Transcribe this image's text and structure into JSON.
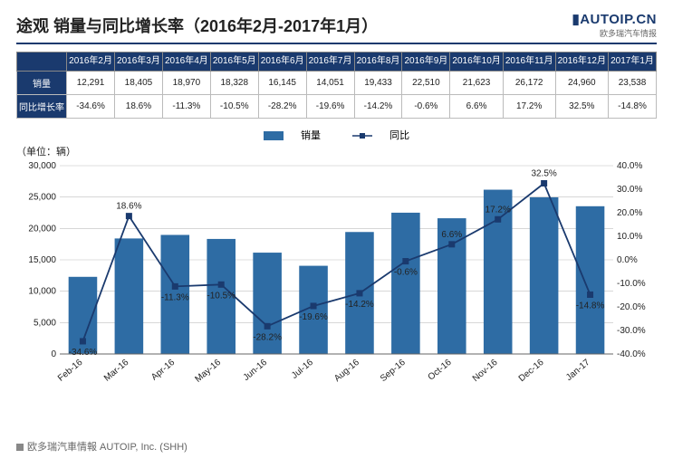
{
  "title": "途观 销量与同比增长率（2016年2月-2017年1月）",
  "logo": {
    "main": "▮AUTOIP.CN",
    "sub": "欧多瑞汽车情报"
  },
  "table": {
    "row_headers": [
      "销量",
      "同比增长率"
    ],
    "periods": [
      "2016年2月",
      "2016年3月",
      "2016年4月",
      "2016年5月",
      "2016年6月",
      "2016年7月",
      "2016年8月",
      "2016年9月",
      "2016年10月",
      "2016年11月",
      "2016年12月",
      "2017年1月"
    ],
    "sales": [
      "12,291",
      "18,405",
      "18,970",
      "18,328",
      "16,145",
      "14,051",
      "19,433",
      "22,510",
      "21,623",
      "26,172",
      "24,960",
      "23,538"
    ],
    "yoy": [
      "-34.6%",
      "18.6%",
      "-11.3%",
      "-10.5%",
      "-28.2%",
      "-19.6%",
      "-14.2%",
      "-0.6%",
      "6.6%",
      "17.2%",
      "32.5%",
      "-14.8%"
    ]
  },
  "chart": {
    "unit_label": "（单位：辆）",
    "legend": {
      "bar": "销量",
      "line": "同比"
    },
    "categories": [
      "Feb-16",
      "Mar-16",
      "Apr-16",
      "May-16",
      "Jun-16",
      "Jul-16",
      "Aug-16",
      "Sep-16",
      "Oct-16",
      "Nov-16",
      "Dec-16",
      "Jan-17"
    ],
    "sales_values": [
      12291,
      18405,
      18970,
      18328,
      16145,
      14051,
      19433,
      22510,
      21623,
      26172,
      24960,
      23538
    ],
    "yoy_values": [
      -34.6,
      18.6,
      -11.3,
      -10.5,
      -28.2,
      -19.6,
      -14.2,
      -0.6,
      6.6,
      17.2,
      32.5,
      -14.8
    ],
    "yoy_labels": [
      "-34.6%",
      "18.6%",
      "-11.3%",
      "-10.5%",
      "-28.2%",
      "-19.6%",
      "-14.2%",
      "-0.6%",
      "6.6%",
      "17.2%",
      "32.5%",
      "-14.8%"
    ],
    "y_left": {
      "min": 0,
      "max": 30000,
      "step": 5000,
      "ticks": [
        "0",
        "5,000",
        "10,000",
        "15,000",
        "20,000",
        "25,000",
        "30,000"
      ]
    },
    "y_right": {
      "min": -40,
      "max": 40,
      "step": 10,
      "ticks": [
        "-40.0%",
        "-30.0%",
        "-20.0%",
        "-10.0%",
        "0.0%",
        "10.0%",
        "20.0%",
        "30.0%",
        "40.0%"
      ]
    },
    "colors": {
      "bar": "#2e6ca4",
      "line": "#1a3a6e",
      "marker": "#1a3a6e",
      "grid": "#bfbfbf",
      "axis": "#666",
      "text": "#222",
      "background": "#ffffff"
    },
    "bar_width_ratio": 0.62,
    "label_fontsize": 10,
    "axis_fontsize": 10
  },
  "footer": "欧多瑞汽車情報  AUTOIP, Inc. (SHH)"
}
